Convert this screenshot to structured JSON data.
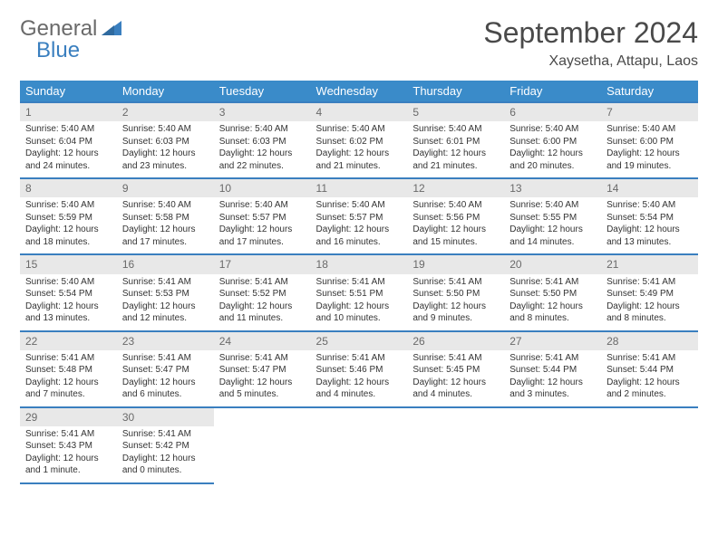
{
  "logo": {
    "word1": "General",
    "word2": "Blue"
  },
  "title": "September 2024",
  "location": "Xaysetha, Attapu, Laos",
  "colors": {
    "header_bg": "#3a8bc9",
    "header_text": "#ffffff",
    "border": "#3a7fbf",
    "daynum_bg": "#e8e8e8",
    "daynum_text": "#6a6a6a",
    "body_text": "#333333",
    "logo_gray": "#6a6a6a",
    "logo_blue": "#3a7fbf"
  },
  "typography": {
    "title_fontsize": 32,
    "location_fontsize": 16,
    "dayheader_fontsize": 13,
    "daynum_fontsize": 12,
    "body_fontsize": 10
  },
  "day_headers": [
    "Sunday",
    "Monday",
    "Tuesday",
    "Wednesday",
    "Thursday",
    "Friday",
    "Saturday"
  ],
  "weeks": [
    [
      {
        "day": "1",
        "sunrise": "Sunrise: 5:40 AM",
        "sunset": "Sunset: 6:04 PM",
        "daylight": "Daylight: 12 hours and 24 minutes."
      },
      {
        "day": "2",
        "sunrise": "Sunrise: 5:40 AM",
        "sunset": "Sunset: 6:03 PM",
        "daylight": "Daylight: 12 hours and 23 minutes."
      },
      {
        "day": "3",
        "sunrise": "Sunrise: 5:40 AM",
        "sunset": "Sunset: 6:03 PM",
        "daylight": "Daylight: 12 hours and 22 minutes."
      },
      {
        "day": "4",
        "sunrise": "Sunrise: 5:40 AM",
        "sunset": "Sunset: 6:02 PM",
        "daylight": "Daylight: 12 hours and 21 minutes."
      },
      {
        "day": "5",
        "sunrise": "Sunrise: 5:40 AM",
        "sunset": "Sunset: 6:01 PM",
        "daylight": "Daylight: 12 hours and 21 minutes."
      },
      {
        "day": "6",
        "sunrise": "Sunrise: 5:40 AM",
        "sunset": "Sunset: 6:00 PM",
        "daylight": "Daylight: 12 hours and 20 minutes."
      },
      {
        "day": "7",
        "sunrise": "Sunrise: 5:40 AM",
        "sunset": "Sunset: 6:00 PM",
        "daylight": "Daylight: 12 hours and 19 minutes."
      }
    ],
    [
      {
        "day": "8",
        "sunrise": "Sunrise: 5:40 AM",
        "sunset": "Sunset: 5:59 PM",
        "daylight": "Daylight: 12 hours and 18 minutes."
      },
      {
        "day": "9",
        "sunrise": "Sunrise: 5:40 AM",
        "sunset": "Sunset: 5:58 PM",
        "daylight": "Daylight: 12 hours and 17 minutes."
      },
      {
        "day": "10",
        "sunrise": "Sunrise: 5:40 AM",
        "sunset": "Sunset: 5:57 PM",
        "daylight": "Daylight: 12 hours and 17 minutes."
      },
      {
        "day": "11",
        "sunrise": "Sunrise: 5:40 AM",
        "sunset": "Sunset: 5:57 PM",
        "daylight": "Daylight: 12 hours and 16 minutes."
      },
      {
        "day": "12",
        "sunrise": "Sunrise: 5:40 AM",
        "sunset": "Sunset: 5:56 PM",
        "daylight": "Daylight: 12 hours and 15 minutes."
      },
      {
        "day": "13",
        "sunrise": "Sunrise: 5:40 AM",
        "sunset": "Sunset: 5:55 PM",
        "daylight": "Daylight: 12 hours and 14 minutes."
      },
      {
        "day": "14",
        "sunrise": "Sunrise: 5:40 AM",
        "sunset": "Sunset: 5:54 PM",
        "daylight": "Daylight: 12 hours and 13 minutes."
      }
    ],
    [
      {
        "day": "15",
        "sunrise": "Sunrise: 5:40 AM",
        "sunset": "Sunset: 5:54 PM",
        "daylight": "Daylight: 12 hours and 13 minutes."
      },
      {
        "day": "16",
        "sunrise": "Sunrise: 5:41 AM",
        "sunset": "Sunset: 5:53 PM",
        "daylight": "Daylight: 12 hours and 12 minutes."
      },
      {
        "day": "17",
        "sunrise": "Sunrise: 5:41 AM",
        "sunset": "Sunset: 5:52 PM",
        "daylight": "Daylight: 12 hours and 11 minutes."
      },
      {
        "day": "18",
        "sunrise": "Sunrise: 5:41 AM",
        "sunset": "Sunset: 5:51 PM",
        "daylight": "Daylight: 12 hours and 10 minutes."
      },
      {
        "day": "19",
        "sunrise": "Sunrise: 5:41 AM",
        "sunset": "Sunset: 5:50 PM",
        "daylight": "Daylight: 12 hours and 9 minutes."
      },
      {
        "day": "20",
        "sunrise": "Sunrise: 5:41 AM",
        "sunset": "Sunset: 5:50 PM",
        "daylight": "Daylight: 12 hours and 8 minutes."
      },
      {
        "day": "21",
        "sunrise": "Sunrise: 5:41 AM",
        "sunset": "Sunset: 5:49 PM",
        "daylight": "Daylight: 12 hours and 8 minutes."
      }
    ],
    [
      {
        "day": "22",
        "sunrise": "Sunrise: 5:41 AM",
        "sunset": "Sunset: 5:48 PM",
        "daylight": "Daylight: 12 hours and 7 minutes."
      },
      {
        "day": "23",
        "sunrise": "Sunrise: 5:41 AM",
        "sunset": "Sunset: 5:47 PM",
        "daylight": "Daylight: 12 hours and 6 minutes."
      },
      {
        "day": "24",
        "sunrise": "Sunrise: 5:41 AM",
        "sunset": "Sunset: 5:47 PM",
        "daylight": "Daylight: 12 hours and 5 minutes."
      },
      {
        "day": "25",
        "sunrise": "Sunrise: 5:41 AM",
        "sunset": "Sunset: 5:46 PM",
        "daylight": "Daylight: 12 hours and 4 minutes."
      },
      {
        "day": "26",
        "sunrise": "Sunrise: 5:41 AM",
        "sunset": "Sunset: 5:45 PM",
        "daylight": "Daylight: 12 hours and 4 minutes."
      },
      {
        "day": "27",
        "sunrise": "Sunrise: 5:41 AM",
        "sunset": "Sunset: 5:44 PM",
        "daylight": "Daylight: 12 hours and 3 minutes."
      },
      {
        "day": "28",
        "sunrise": "Sunrise: 5:41 AM",
        "sunset": "Sunset: 5:44 PM",
        "daylight": "Daylight: 12 hours and 2 minutes."
      }
    ],
    [
      {
        "day": "29",
        "sunrise": "Sunrise: 5:41 AM",
        "sunset": "Sunset: 5:43 PM",
        "daylight": "Daylight: 12 hours and 1 minute."
      },
      {
        "day": "30",
        "sunrise": "Sunrise: 5:41 AM",
        "sunset": "Sunset: 5:42 PM",
        "daylight": "Daylight: 12 hours and 0 minutes."
      },
      null,
      null,
      null,
      null,
      null
    ]
  ]
}
